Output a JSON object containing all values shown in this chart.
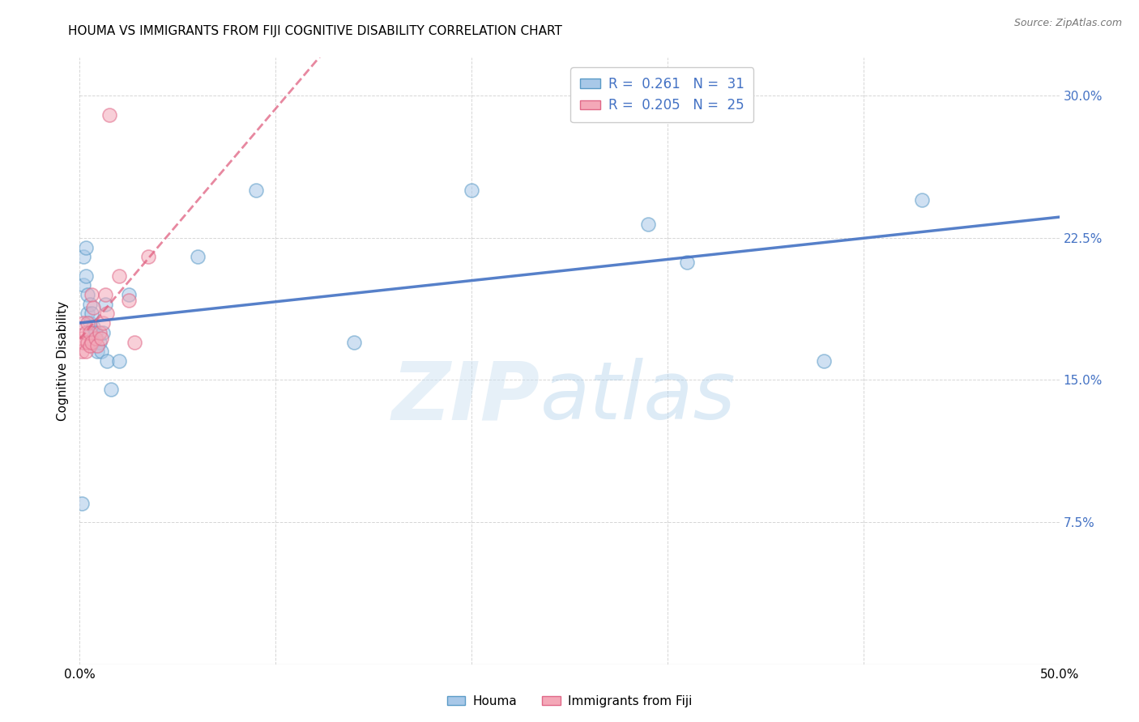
{
  "title": "HOUMA VS IMMIGRANTS FROM FIJI COGNITIVE DISABILITY CORRELATION CHART",
  "source": "Source: ZipAtlas.com",
  "ylabel": "Cognitive Disability",
  "ytick_labels": [
    "7.5%",
    "15.0%",
    "22.5%",
    "30.0%"
  ],
  "ytick_values": [
    0.075,
    0.15,
    0.225,
    0.3
  ],
  "xlim": [
    0.0,
    0.5
  ],
  "ylim": [
    0.0,
    0.32
  ],
  "houma_color": "#a8c8e8",
  "fiji_color": "#f4a8b8",
  "houma_edge": "#5b9bc7",
  "fiji_edge": "#e06888",
  "trend_houma_color": "#4472C4",
  "trend_fiji_color": "#E06080",
  "watermark_zip": "ZIP",
  "watermark_atlas": "atlas",
  "background_color": "#ffffff",
  "grid_color": "#cccccc",
  "houma_x": [
    0.001,
    0.002,
    0.002,
    0.003,
    0.003,
    0.004,
    0.004,
    0.005,
    0.005,
    0.006,
    0.006,
    0.007,
    0.007,
    0.008,
    0.009,
    0.01,
    0.011,
    0.012,
    0.013,
    0.014,
    0.016,
    0.02,
    0.025,
    0.06,
    0.09,
    0.14,
    0.2,
    0.31,
    0.38,
    0.43,
    0.29
  ],
  "houma_y": [
    0.085,
    0.215,
    0.2,
    0.22,
    0.205,
    0.195,
    0.185,
    0.19,
    0.18,
    0.185,
    0.175,
    0.178,
    0.17,
    0.175,
    0.165,
    0.17,
    0.165,
    0.175,
    0.19,
    0.16,
    0.145,
    0.16,
    0.195,
    0.215,
    0.25,
    0.17,
    0.25,
    0.212,
    0.16,
    0.245,
    0.232
  ],
  "fiji_x": [
    0.001,
    0.001,
    0.002,
    0.002,
    0.003,
    0.003,
    0.004,
    0.004,
    0.005,
    0.005,
    0.006,
    0.006,
    0.007,
    0.008,
    0.009,
    0.01,
    0.011,
    0.012,
    0.013,
    0.014,
    0.015,
    0.02,
    0.025,
    0.028,
    0.035
  ],
  "fiji_y": [
    0.172,
    0.165,
    0.18,
    0.17,
    0.175,
    0.165,
    0.17,
    0.18,
    0.168,
    0.175,
    0.17,
    0.195,
    0.188,
    0.172,
    0.168,
    0.175,
    0.172,
    0.18,
    0.195,
    0.185,
    0.29,
    0.205,
    0.192,
    0.17,
    0.215
  ]
}
